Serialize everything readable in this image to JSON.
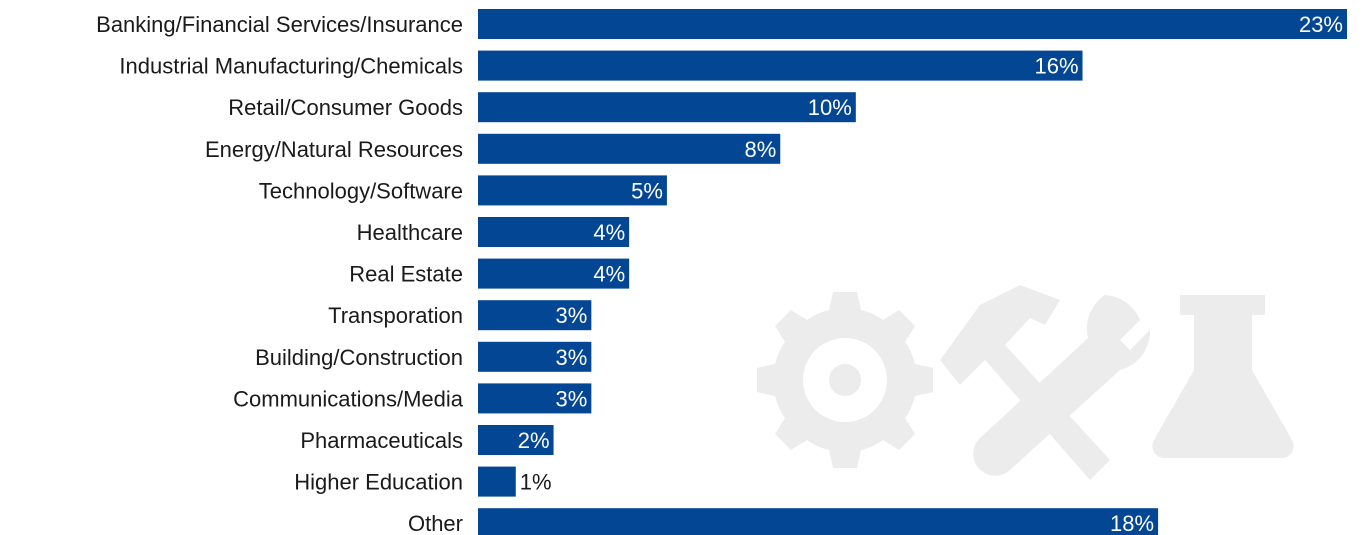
{
  "chart_data": {
    "type": "bar",
    "orientation": "horizontal",
    "categories": [
      "Banking/Financial Services/Insurance",
      "Industrial Manufacturing/Chemicals",
      "Retail/Consumer Goods",
      "Energy/Natural Resources",
      "Technology/Software",
      "Healthcare",
      "Real Estate",
      "Transporation",
      "Building/Construction",
      "Communications/Media",
      "Pharmaceuticals",
      "Higher Education",
      "Other"
    ],
    "values": [
      23,
      16,
      10,
      8,
      5,
      4,
      4,
      3,
      3,
      3,
      2,
      1,
      18
    ],
    "data_labels": [
      "23%",
      "16%",
      "10%",
      "8%",
      "5%",
      "4%",
      "4%",
      "3%",
      "3%",
      "3%",
      "2%",
      "1%",
      "18%"
    ],
    "unit": "%",
    "xlim": [
      0,
      23
    ],
    "grid": false,
    "legend": "none"
  },
  "colors": {
    "bar": "#034694",
    "label_inside": "#ffffff",
    "label_outside": "#1a1a1a",
    "watermark": "#ececec"
  },
  "watermark_icons": [
    "gear-icon",
    "hammer-wrench-icon",
    "flask-icon"
  ]
}
